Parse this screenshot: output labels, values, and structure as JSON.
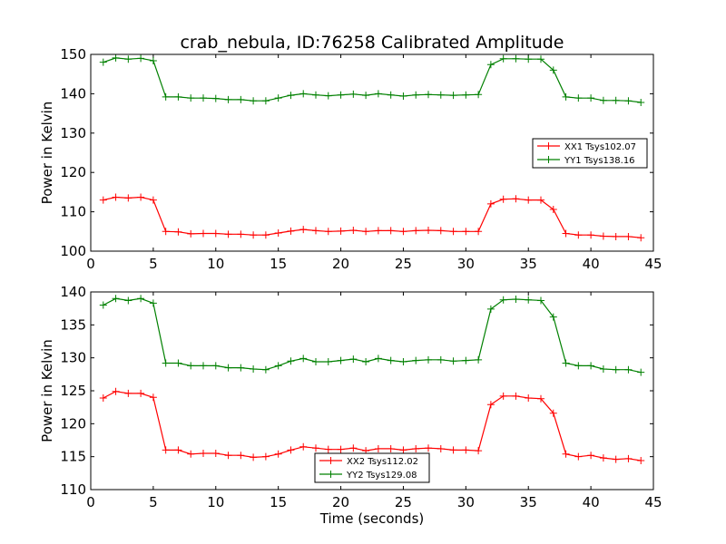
{
  "chart_data": [
    {
      "type": "line",
      "title": "crab_nebula, ID:76258 Calibrated Amplitude",
      "xlabel": "",
      "ylabel": "Power in Kelvin",
      "xlim": [
        0,
        45
      ],
      "ylim": [
        100,
        150
      ],
      "xticks": [
        0,
        5,
        10,
        15,
        20,
        25,
        30,
        35,
        40,
        45
      ],
      "yticks": [
        100,
        110,
        120,
        130,
        140,
        150
      ],
      "grid": false,
      "legend_position": "right",
      "x": [
        1,
        2,
        3,
        4,
        5,
        6,
        7,
        8,
        9,
        10,
        11,
        12,
        13,
        14,
        15,
        16,
        17,
        18,
        19,
        20,
        21,
        22,
        23,
        24,
        25,
        26,
        27,
        28,
        29,
        30,
        31,
        32,
        33,
        34,
        35,
        36,
        37,
        38,
        39,
        40,
        41,
        42,
        43,
        44
      ],
      "series": [
        {
          "name": "XX1 Tsys102.07",
          "color": "#ff0000",
          "values": [
            113.0,
            113.7,
            113.5,
            113.7,
            113.0,
            105.0,
            104.9,
            104.4,
            104.5,
            104.5,
            104.3,
            104.3,
            104.1,
            104.1,
            104.6,
            105.1,
            105.5,
            105.2,
            105.0,
            105.1,
            105.3,
            105.0,
            105.2,
            105.2,
            105.0,
            105.2,
            105.3,
            105.2,
            105.0,
            105.0,
            105.0,
            112.0,
            113.2,
            113.3,
            113.0,
            113.0,
            110.6,
            104.5,
            104.1,
            104.1,
            103.8,
            103.7,
            103.7,
            103.4
          ]
        },
        {
          "name": "YY1 Tsys138.16",
          "color": "#008000",
          "values": [
            148.0,
            149.1,
            148.8,
            149.0,
            148.4,
            139.2,
            139.2,
            138.9,
            138.9,
            138.8,
            138.5,
            138.5,
            138.2,
            138.2,
            138.9,
            139.6,
            140.0,
            139.7,
            139.5,
            139.7,
            139.9,
            139.6,
            140.0,
            139.7,
            139.4,
            139.7,
            139.8,
            139.7,
            139.6,
            139.7,
            139.8,
            147.4,
            148.9,
            148.9,
            148.8,
            148.8,
            146.0,
            139.2,
            138.9,
            138.9,
            138.3,
            138.3,
            138.2,
            137.8
          ]
        }
      ]
    },
    {
      "type": "line",
      "title": "",
      "xlabel": "Time (seconds)",
      "ylabel": "Power in Kelvin",
      "xlim": [
        0,
        45
      ],
      "ylim": [
        110,
        140
      ],
      "xticks": [
        0,
        5,
        10,
        15,
        20,
        25,
        30,
        35,
        40,
        45
      ],
      "yticks": [
        110,
        115,
        120,
        125,
        130,
        135,
        140
      ],
      "grid": false,
      "legend_position": "bottom-center",
      "x": [
        1,
        2,
        3,
        4,
        5,
        6,
        7,
        8,
        9,
        10,
        11,
        12,
        13,
        14,
        15,
        16,
        17,
        18,
        19,
        20,
        21,
        22,
        23,
        24,
        25,
        26,
        27,
        28,
        29,
        30,
        31,
        32,
        33,
        34,
        35,
        36,
        37,
        38,
        39,
        40,
        41,
        42,
        43,
        44
      ],
      "series": [
        {
          "name": "XX2 Tsys112.02",
          "color": "#ff0000",
          "values": [
            123.9,
            124.9,
            124.6,
            124.6,
            124.0,
            116.0,
            116.0,
            115.4,
            115.5,
            115.5,
            115.2,
            115.2,
            114.9,
            115.0,
            115.4,
            116.0,
            116.5,
            116.3,
            116.1,
            116.1,
            116.3,
            115.9,
            116.2,
            116.2,
            116.0,
            116.2,
            116.3,
            116.2,
            116.0,
            116.0,
            115.9,
            122.9,
            124.2,
            124.2,
            123.9,
            123.8,
            121.6,
            115.4,
            115.0,
            115.2,
            114.8,
            114.6,
            114.7,
            114.4
          ]
        },
        {
          "name": "YY2 Tsys129.08",
          "color": "#008000",
          "values": [
            138.0,
            139.0,
            138.7,
            139.0,
            138.3,
            129.2,
            129.2,
            128.8,
            128.8,
            128.8,
            128.5,
            128.5,
            128.3,
            128.2,
            128.8,
            129.5,
            129.9,
            129.4,
            129.4,
            129.6,
            129.8,
            129.4,
            129.9,
            129.6,
            129.4,
            129.6,
            129.7,
            129.7,
            129.5,
            129.6,
            129.7,
            137.4,
            138.8,
            138.9,
            138.8,
            138.7,
            136.2,
            129.2,
            128.8,
            128.8,
            128.3,
            128.2,
            128.2,
            127.8
          ]
        }
      ]
    }
  ]
}
